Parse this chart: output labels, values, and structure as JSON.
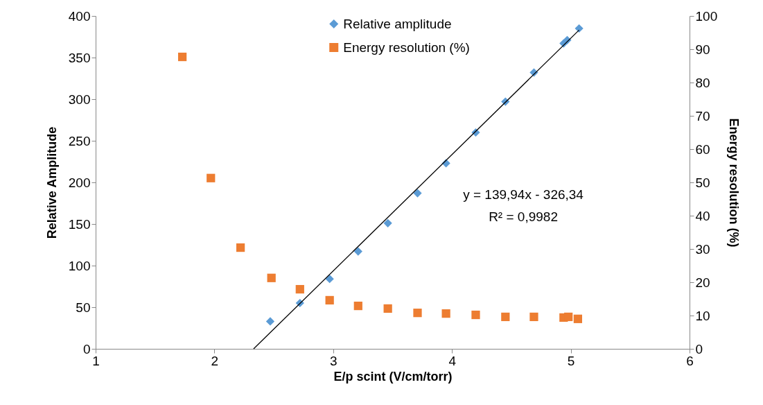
{
  "chart_data": {
    "type": "scatter",
    "xlabel": "E/p scint (V/cm/torr)",
    "ylabel": "Relative Amplitude",
    "y2label": "Energy resolution (%)",
    "xlim": [
      1,
      6
    ],
    "xticks": [
      1,
      2,
      3,
      4,
      5,
      6
    ],
    "ylim": [
      0,
      400
    ],
    "yticks": [
      0,
      50,
      100,
      150,
      200,
      250,
      300,
      350,
      400
    ],
    "y2lim": [
      0,
      100
    ],
    "y2ticks": [
      0,
      10,
      20,
      30,
      40,
      50,
      60,
      70,
      80,
      90,
      100
    ],
    "grid": false,
    "legend": "top",
    "annotations": [
      "y = 139,94x - 326,34",
      "R² = 0,9982"
    ],
    "series": [
      {
        "name": "Relative amplitude",
        "color": "#5b9bd5",
        "marker": "diamond",
        "x": [
          2.47,
          2.72,
          2.97,
          3.21,
          3.46,
          3.71,
          3.95,
          4.2,
          4.45,
          4.69,
          4.94,
          4.97,
          5.07
        ],
        "values": [
          33,
          55,
          84,
          117,
          151,
          187,
          223,
          260,
          297,
          332,
          367,
          371,
          385
        ]
      },
      {
        "name": "Energy resolution (%)",
        "color": "#ed7d31",
        "marker": "square",
        "axis": "y2",
        "x": [
          1.73,
          1.97,
          2.22,
          2.48,
          2.72,
          2.97,
          3.21,
          3.46,
          3.71,
          3.95,
          4.2,
          4.45,
          4.69,
          4.94,
          4.98,
          5.06
        ],
        "values": [
          87.7,
          51.3,
          30.4,
          21.3,
          17.9,
          14.6,
          12.9,
          12.1,
          10.8,
          10.6,
          10.2,
          9.6,
          9.6,
          9.4,
          9.6,
          9.0
        ]
      },
      {
        "type": "line",
        "color": "#000000",
        "marker": "none",
        "line_style": "solid",
        "x": [
          2.33,
          5.07
        ],
        "values": [
          0,
          383
        ]
      }
    ]
  }
}
